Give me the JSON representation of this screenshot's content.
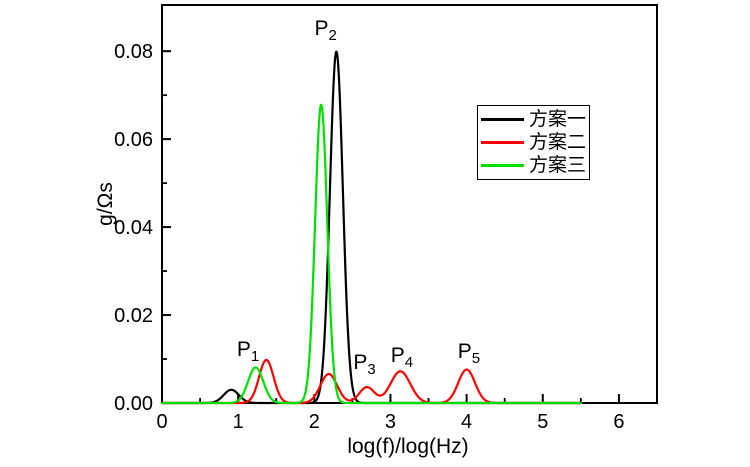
{
  "figure": {
    "background": "#ffffff"
  },
  "chart_data": {
    "type": "line",
    "title": "",
    "xlabel": "log(f)/log(Hz)",
    "ylabel": "g/Ωs",
    "xlim": [
      0,
      6.5
    ],
    "ylim": [
      0,
      0.0905
    ],
    "grid": false,
    "curve_model": "sum_of_gaussians",
    "sample_step": 0.005,
    "xticks": {
      "major": [
        0,
        1,
        2,
        3,
        4,
        5,
        6
      ],
      "labels": [
        "0",
        "1",
        "2",
        "3",
        "4",
        "5",
        "6"
      ],
      "minor": [
        0.5,
        1.5,
        2.5,
        3.5,
        4.5,
        5.5
      ]
    },
    "yticks": {
      "major": [
        0,
        0.02,
        0.04,
        0.06,
        0.08
      ],
      "labels": [
        "0.00",
        "0.02",
        "0.04",
        "0.06",
        "0.08"
      ],
      "minor": [
        0.01,
        0.03,
        0.05,
        0.07
      ]
    },
    "legend": {
      "position": "upper-right-inside",
      "items": [
        {
          "label": "方案一",
          "color": "#000000"
        },
        {
          "label": "方案二",
          "color": "#ff0000"
        },
        {
          "label": "方案三",
          "color": "#00dd00"
        }
      ]
    },
    "series": [
      {
        "name": "方案一",
        "color": "#000000",
        "x_range": [
          0,
          5.5
        ],
        "peaks": [
          {
            "center": 0.91,
            "height": 0.003,
            "sigma": 0.1
          },
          {
            "center": 2.29,
            "height": 0.0799,
            "sigma": 0.085
          }
        ]
      },
      {
        "name": "方案二",
        "color": "#ff0000",
        "x_range": [
          0,
          5.5
        ],
        "peaks": [
          {
            "center": 1.37,
            "height": 0.0098,
            "sigma": 0.095
          },
          {
            "center": 2.19,
            "height": 0.0066,
            "sigma": 0.11
          },
          {
            "center": 2.69,
            "height": 0.0036,
            "sigma": 0.1
          },
          {
            "center": 3.13,
            "height": 0.0072,
            "sigma": 0.13
          },
          {
            "center": 4.0,
            "height": 0.0076,
            "sigma": 0.11
          }
        ]
      },
      {
        "name": "方案三",
        "color": "#00dd00",
        "x_range": [
          0,
          5.5
        ],
        "peaks": [
          {
            "center": 1.23,
            "height": 0.0081,
            "sigma": 0.1
          },
          {
            "center": 2.09,
            "height": 0.0678,
            "sigma": 0.08
          }
        ]
      }
    ],
    "annotations": [
      {
        "base": "P",
        "sub": "1",
        "x": 1.13,
        "y": 0.0121
      },
      {
        "base": "P",
        "sub": "2",
        "x": 2.15,
        "y": 0.085
      },
      {
        "base": "P",
        "sub": "3",
        "x": 2.66,
        "y": 0.0092
      },
      {
        "base": "P",
        "sub": "4",
        "x": 3.15,
        "y": 0.0108
      },
      {
        "base": "P",
        "sub": "5",
        "x": 4.03,
        "y": 0.0117
      }
    ]
  }
}
